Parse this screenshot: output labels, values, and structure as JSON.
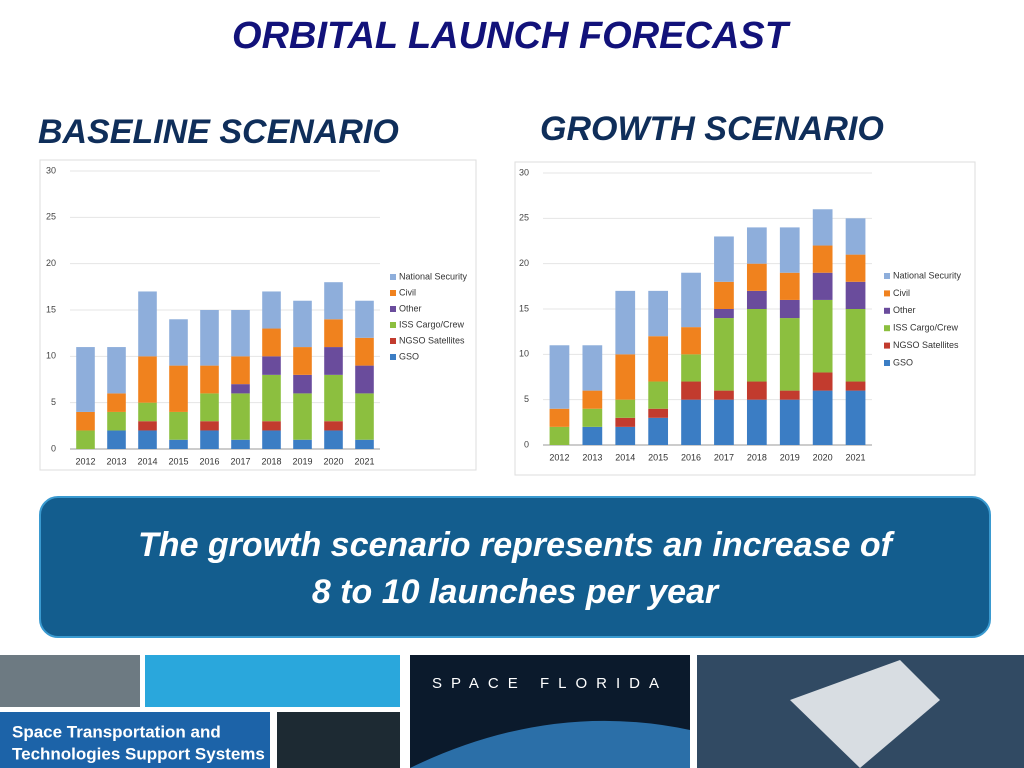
{
  "title": "ORBITAL LAUNCH FORECAST",
  "chart_data": [
    {
      "type": "bar",
      "stacked": true,
      "title": "BASELINE SCENARIO",
      "categories": [
        "2012",
        "2013",
        "2014",
        "2015",
        "2016",
        "2017",
        "2018",
        "2019",
        "2020",
        "2021"
      ],
      "series": [
        {
          "name": "GSO",
          "color": "#3b7dc4",
          "values": [
            0,
            2,
            2,
            1,
            2,
            1,
            2,
            1,
            2,
            1
          ]
        },
        {
          "name": "NGSO Satellites",
          "color": "#c23b2e",
          "values": [
            0,
            0,
            1,
            0,
            1,
            0,
            1,
            0,
            1,
            0
          ]
        },
        {
          "name": "ISS Cargo/Crew",
          "color": "#8cbf3f",
          "values": [
            2,
            2,
            2,
            3,
            3,
            5,
            5,
            5,
            5,
            5
          ]
        },
        {
          "name": "Other",
          "color": "#6a4c9c",
          "values": [
            0,
            0,
            0,
            0,
            0,
            1,
            2,
            2,
            3,
            3
          ]
        },
        {
          "name": "Civil",
          "color": "#f0821e",
          "values": [
            2,
            2,
            5,
            5,
            3,
            3,
            3,
            3,
            3,
            3
          ]
        },
        {
          "name": "National Security",
          "color": "#8eaedb",
          "values": [
            7,
            5,
            7,
            5,
            6,
            5,
            4,
            5,
            4,
            4
          ]
        }
      ],
      "ylim": [
        0,
        30
      ],
      "yticks": [
        0,
        5,
        10,
        15,
        20,
        25,
        30
      ],
      "grid": true,
      "legend": "right"
    },
    {
      "type": "bar",
      "stacked": true,
      "title": "GROWTH SCENARIO",
      "categories": [
        "2012",
        "2013",
        "2014",
        "2015",
        "2016",
        "2017",
        "2018",
        "2019",
        "2020",
        "2021"
      ],
      "series": [
        {
          "name": "GSO",
          "color": "#3b7dc4",
          "values": [
            0,
            2,
            2,
            3,
            5,
            5,
            5,
            5,
            6,
            6
          ]
        },
        {
          "name": "NGSO Satellites",
          "color": "#c23b2e",
          "values": [
            0,
            0,
            1,
            1,
            2,
            1,
            2,
            1,
            2,
            1
          ]
        },
        {
          "name": "ISS Cargo/Crew",
          "color": "#8cbf3f",
          "values": [
            2,
            2,
            2,
            3,
            3,
            8,
            8,
            8,
            8,
            8
          ]
        },
        {
          "name": "Other",
          "color": "#6a4c9c",
          "values": [
            0,
            0,
            0,
            0,
            0,
            1,
            2,
            2,
            3,
            3
          ]
        },
        {
          "name": "Civil",
          "color": "#f0821e",
          "values": [
            2,
            2,
            5,
            5,
            3,
            3,
            3,
            3,
            3,
            3
          ]
        },
        {
          "name": "National Security",
          "color": "#8eaedb",
          "values": [
            7,
            5,
            7,
            5,
            6,
            5,
            4,
            5,
            4,
            4
          ]
        }
      ],
      "ylim": [
        0,
        30
      ],
      "yticks": [
        0,
        5,
        10,
        15,
        20,
        25,
        30
      ],
      "grid": true,
      "legend": "right"
    }
  ],
  "callout": [
    "The growth scenario represents an increase of",
    "8 to 10 launches per year"
  ],
  "footer": {
    "left_lines": [
      "Space Transportation and",
      "Technologies Support Systems"
    ],
    "logo": "SPACE FLORIDA"
  }
}
